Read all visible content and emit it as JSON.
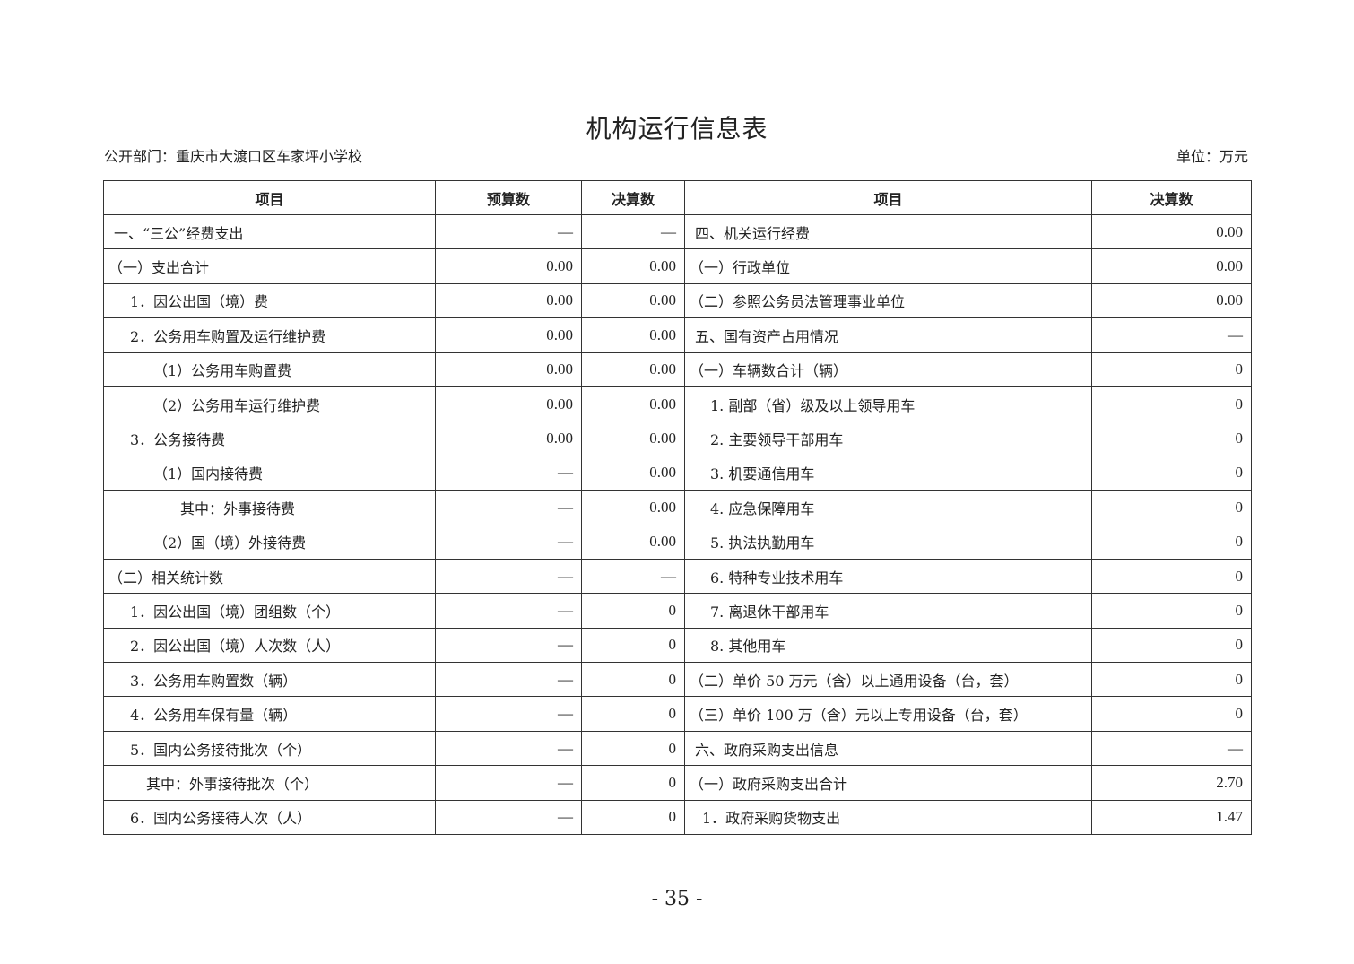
{
  "title": "机构运行信息表",
  "department": "公开部门：重庆市大渡口区车家坪小学校",
  "unit": "单位：万元",
  "headers": {
    "item_left": "项目",
    "budget": "预算数",
    "final_left": "决算数",
    "item_right": "项目",
    "final_right": "决算数"
  },
  "rows": [
    {
      "left": "一、“三公”经费支出",
      "budget": "—",
      "final": "—",
      "right": "四、机关运行经费",
      "right_final": "0.00"
    },
    {
      "left": "（一）支出合计",
      "budget": "0.00",
      "final": "0.00",
      "right": "（一）行政单位",
      "right_final": "0.00"
    },
    {
      "left": "1．因公出国（境）费",
      "budget": "0.00",
      "final": "0.00",
      "right": "（二）参照公务员法管理事业单位",
      "right_final": "0.00"
    },
    {
      "left": "2．公务用车购置及运行维护费",
      "budget": "0.00",
      "final": "0.00",
      "right": "五、国有资产占用情况",
      "right_final": "—"
    },
    {
      "left": "（1）公务用车购置费",
      "budget": "0.00",
      "final": "0.00",
      "right": "（一）车辆数合计（辆）",
      "right_final": "0"
    },
    {
      "left": "（2）公务用车运行维护费",
      "budget": "0.00",
      "final": "0.00",
      "right": "1. 副部（省）级及以上领导用车",
      "right_final": "0"
    },
    {
      "left": "3．公务接待费",
      "budget": "0.00",
      "final": "0.00",
      "right": "2. 主要领导干部用车",
      "right_final": "0"
    },
    {
      "left": "（1）国内接待费",
      "budget": "—",
      "final": "0.00",
      "right": "3. 机要通信用车",
      "right_final": "0"
    },
    {
      "left": "其中：外事接待费",
      "budget": "—",
      "final": "0.00",
      "right": "4. 应急保障用车",
      "right_final": "0"
    },
    {
      "left": "（2）国（境）外接待费",
      "budget": "—",
      "final": "0.00",
      "right": "5. 执法执勤用车",
      "right_final": "0"
    },
    {
      "left": "（二）相关统计数",
      "budget": "—",
      "final": "—",
      "right": "6. 特种专业技术用车",
      "right_final": "0"
    },
    {
      "left": "1．因公出国（境）团组数（个）",
      "budget": "—",
      "final": "0",
      "right": "7. 离退休干部用车",
      "right_final": "0"
    },
    {
      "left": "2．因公出国（境）人次数（人）",
      "budget": "—",
      "final": "0",
      "right": "8. 其他用车",
      "right_final": "0"
    },
    {
      "left": "3．公务用车购置数（辆）",
      "budget": "—",
      "final": "0",
      "right": "（二）单价 50 万元（含）以上通用设备（台，套）",
      "right_final": "0"
    },
    {
      "left": "4．公务用车保有量（辆）",
      "budget": "—",
      "final": "0",
      "right": "（三）单价 100 万（含）元以上专用设备（台，套）",
      "right_final": "0"
    },
    {
      "left": "5．国内公务接待批次（个）",
      "budget": "—",
      "final": "0",
      "right": "六、政府采购支出信息",
      "right_final": "—"
    },
    {
      "left": "其中：外事接待批次（个）",
      "budget": "—",
      "final": "0",
      "right": "（一）政府采购支出合计",
      "right_final": "2.70"
    },
    {
      "left": "6．国内公务接待人次（人）",
      "budget": "—",
      "final": "0",
      "right": "1．政府采购货物支出",
      "right_final": "1.47"
    }
  ],
  "page_number": "- 35 -"
}
